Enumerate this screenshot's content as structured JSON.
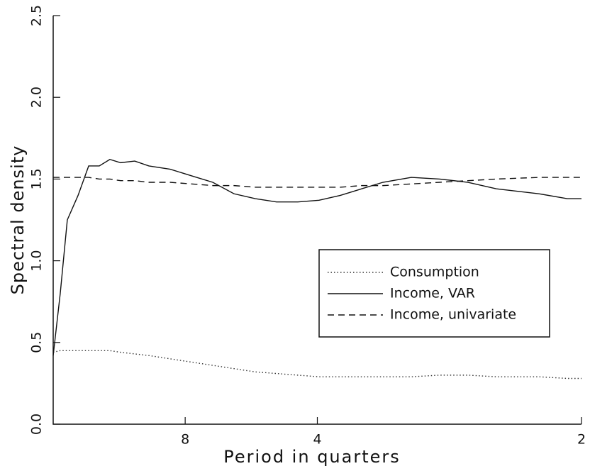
{
  "chart_data": {
    "type": "line",
    "xlabel": "Period in quarters",
    "ylabel": "Spectral density",
    "x": [
      0,
      0.042,
      0.084,
      0.148,
      0.211,
      0.274,
      0.337,
      0.401,
      0.485,
      0.569,
      0.696,
      0.822,
      0.949,
      1.075,
      1.202,
      1.328,
      1.455,
      1.581,
      1.708,
      1.834,
      1.961,
      2.13,
      2.298,
      2.467,
      2.636,
      2.889,
      3.057,
      3.142
    ],
    "series": [
      {
        "name": "Consumption",
        "color": "#333333",
        "dash": "dotted",
        "values": [
          0.44,
          0.45,
          0.45,
          0.45,
          0.45,
          0.45,
          0.45,
          0.44,
          0.43,
          0.42,
          0.4,
          0.38,
          0.36,
          0.34,
          0.32,
          0.31,
          0.3,
          0.29,
          0.29,
          0.29,
          0.29,
          0.29,
          0.3,
          0.3,
          0.29,
          0.29,
          0.28,
          0.28
        ]
      },
      {
        "name": "Income, VAR",
        "color": "#111111",
        "dash": "solid",
        "values": [
          0.42,
          0.8,
          1.25,
          1.4,
          1.58,
          1.58,
          1.62,
          1.6,
          1.61,
          1.58,
          1.56,
          1.52,
          1.48,
          1.41,
          1.38,
          1.36,
          1.36,
          1.37,
          1.4,
          1.44,
          1.48,
          1.51,
          1.5,
          1.48,
          1.44,
          1.41,
          1.38,
          1.38
        ]
      },
      {
        "name": "Income, univariate",
        "color": "#111111",
        "dash": "dashed",
        "values": [
          1.51,
          1.51,
          1.51,
          1.51,
          1.51,
          1.5,
          1.5,
          1.49,
          1.49,
          1.48,
          1.48,
          1.47,
          1.46,
          1.46,
          1.45,
          1.45,
          1.45,
          1.45,
          1.45,
          1.46,
          1.46,
          1.47,
          1.48,
          1.49,
          1.5,
          1.51,
          1.51,
          1.51
        ]
      }
    ],
    "xlim": [
      0,
      3.142
    ],
    "xticks": [
      {
        "value": 0.785,
        "label": "8"
      },
      {
        "value": 1.571,
        "label": "4"
      },
      {
        "value": 3.142,
        "label": "2"
      }
    ],
    "ylim": [
      0,
      2.5
    ],
    "yticks": [
      {
        "value": 0,
        "label": "0.0"
      },
      {
        "value": 0.5,
        "label": "0.5"
      },
      {
        "value": 1.0,
        "label": "1.0"
      },
      {
        "value": 1.5,
        "label": "1.5"
      },
      {
        "value": 2.0,
        "label": "2.0"
      },
      {
        "value": 2.5,
        "label": "2.5"
      }
    ],
    "legend": "lower right"
  }
}
